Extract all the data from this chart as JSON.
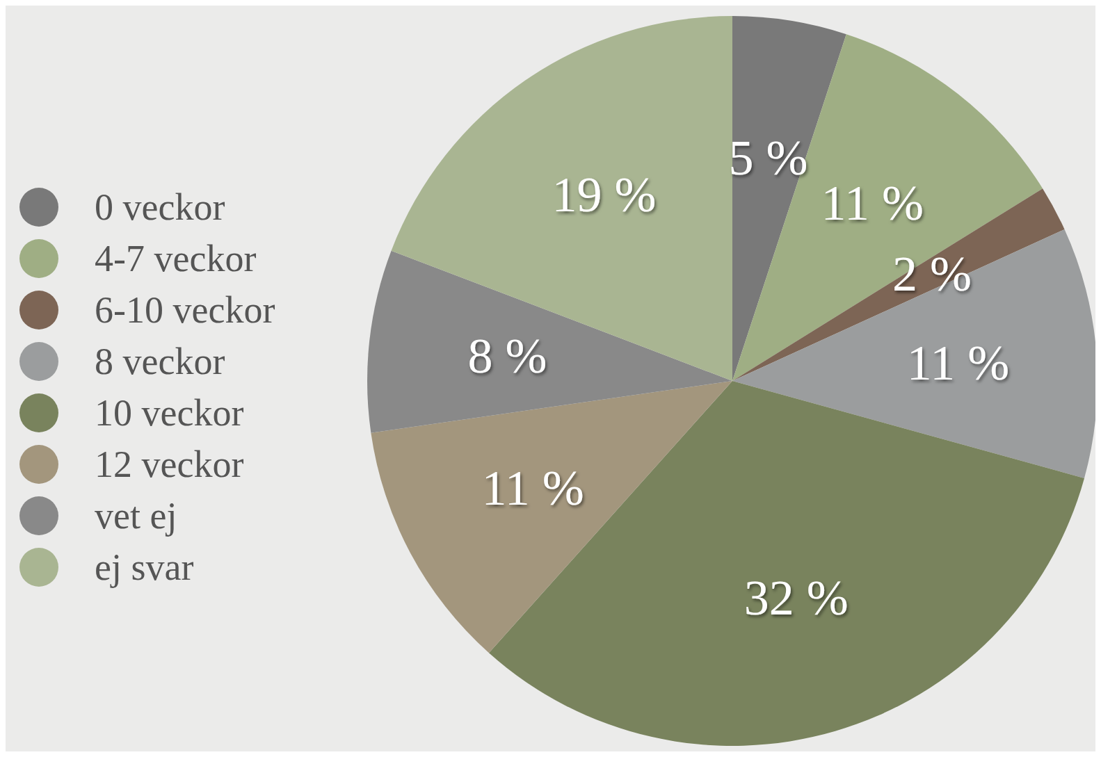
{
  "chart_data": {
    "type": "pie",
    "categories": [
      "0 veckor",
      "4-7 veckor",
      "6-10 veckor",
      "8 veckor",
      "10 veckor",
      "12 veckor",
      "vet ej",
      "ej svar"
    ],
    "values": [
      5,
      11,
      2,
      11,
      32,
      11,
      8,
      19
    ],
    "colors": [
      "#797979",
      "#9fae84",
      "#7d6555",
      "#9b9d9e",
      "#79835d",
      "#a3967d",
      "#898989",
      "#a9b592"
    ],
    "value_labels": [
      "5 %",
      "11 %",
      "2 %",
      "11 %",
      "32 %",
      "11 %",
      "8 %",
      "19 %"
    ],
    "legend": "left"
  }
}
